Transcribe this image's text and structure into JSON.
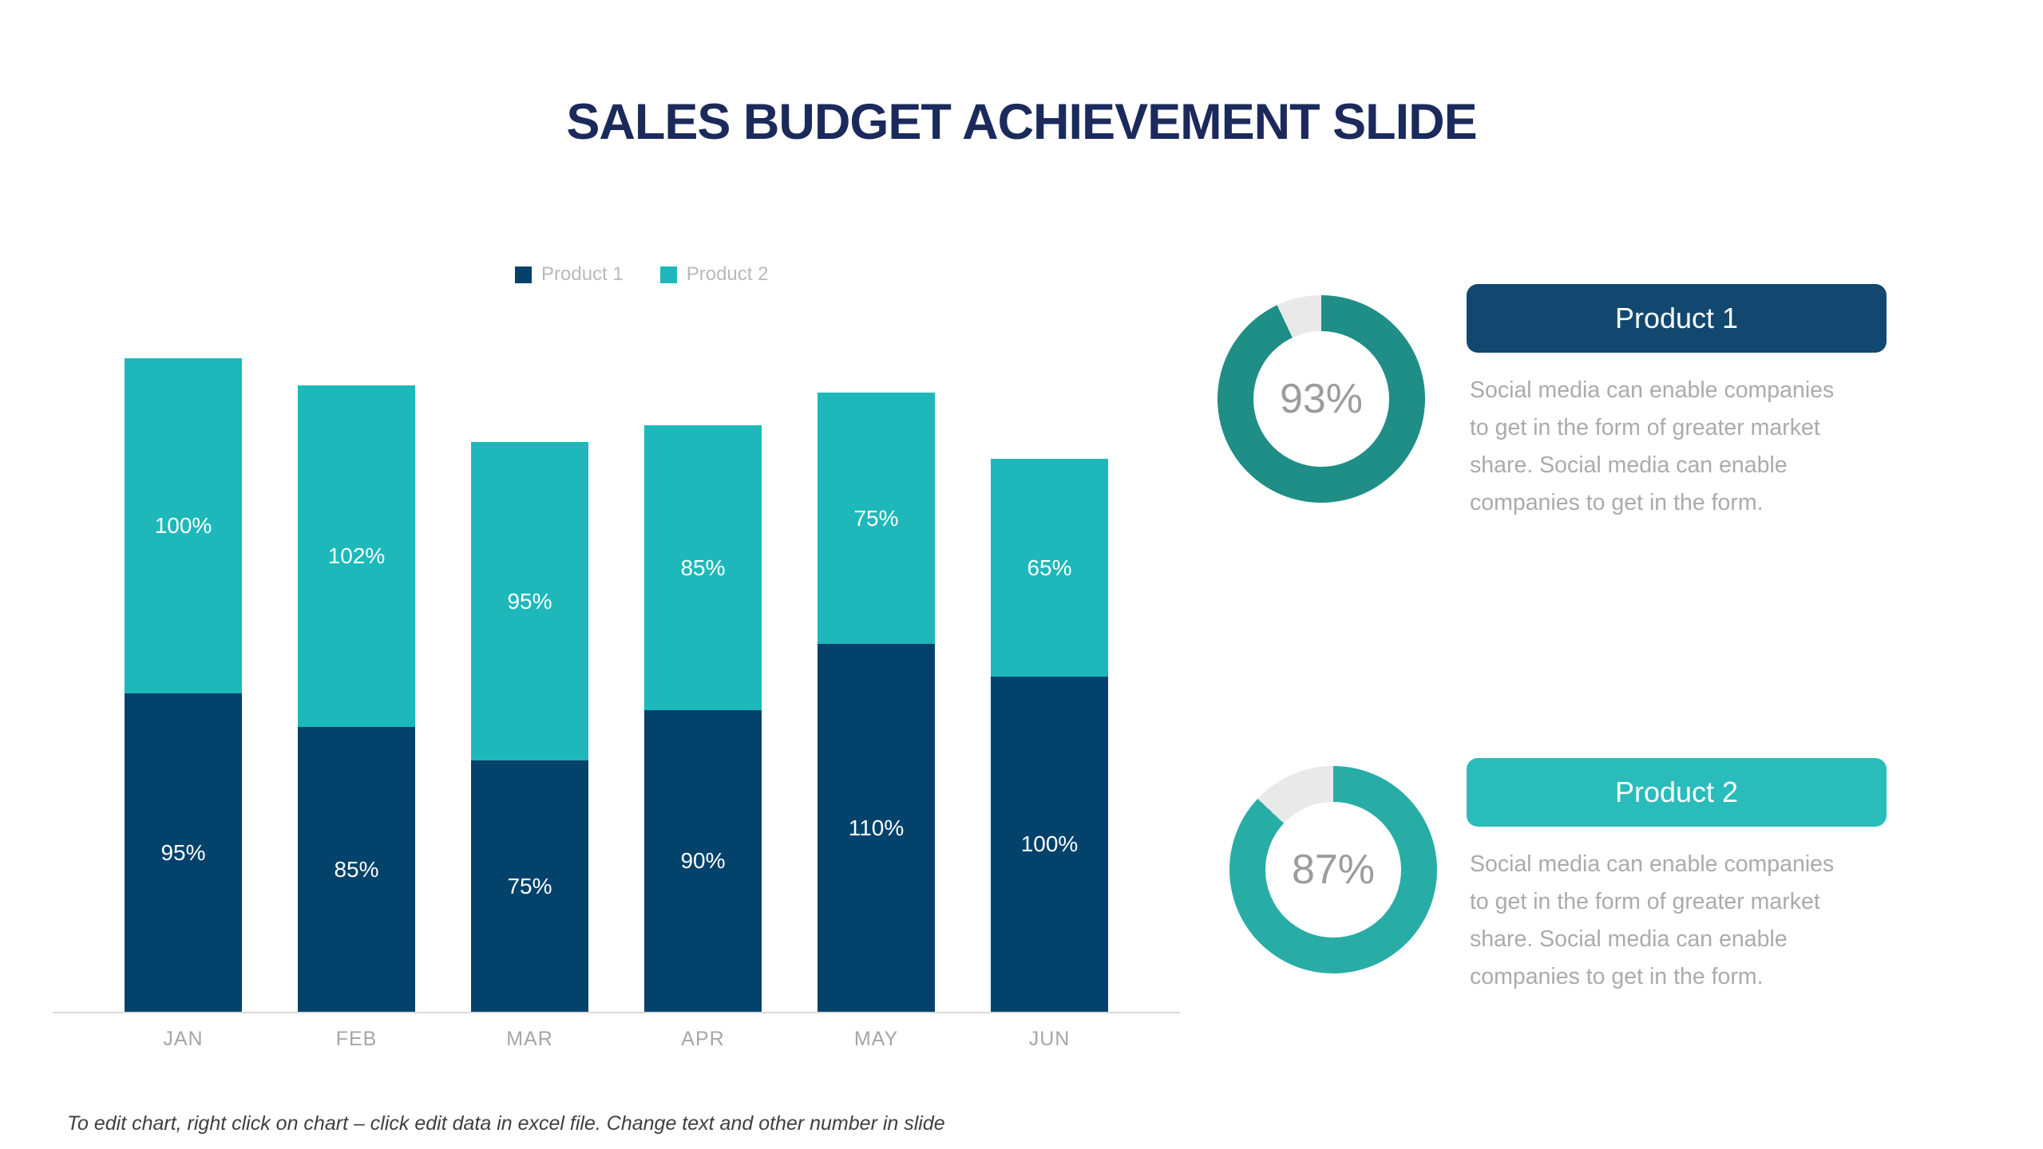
{
  "title": "SALES BUDGET ACHIEVEMENT SLIDE",
  "footer_note": "To edit chart, right click on chart – click edit data in excel file. Change text and other number in slide",
  "colors": {
    "title_navy": "#1B2A5B",
    "bar_navy": "#03426B",
    "bar_teal": "#1EB8BA",
    "donut1_teal": "#1F8E86",
    "donut2_teal": "#28ADA6",
    "track_gray": "#E9E9E9",
    "card1_navy": "#12486F",
    "card2_teal": "#29BCBA",
    "percent_gray": "#9C9C9C",
    "body_gray": "#ABABAB",
    "legend_gray": "#B9B9B9",
    "month_gray": "#A6A6A6",
    "axis_gray": "#D9D9D9",
    "footer_gray": "#3F3F3F"
  },
  "chart_data": [
    {
      "type": "bar",
      "stacked": true,
      "title": "",
      "categories": [
        "JAN",
        "FEB",
        "MAR",
        "APR",
        "MAY",
        "JUN"
      ],
      "series": [
        {
          "name": "Product 1",
          "color": "#03426B",
          "values": [
            95,
            85,
            75,
            90,
            110,
            100
          ],
          "labels": [
            "95%",
            "85%",
            "75%",
            "90%",
            "110%",
            "100%"
          ]
        },
        {
          "name": "Product 2",
          "color": "#1EB8BA",
          "values": [
            100,
            102,
            95,
            85,
            75,
            65
          ],
          "labels": [
            "100%",
            "102%",
            "95%",
            "85%",
            "75%",
            "65%"
          ]
        }
      ],
      "value_unit": "%",
      "ylim": [
        0,
        200
      ],
      "gridlines": false,
      "legend_position": "top",
      "xlabel": "",
      "ylabel": ""
    },
    {
      "type": "donut",
      "value": 93,
      "remainder": 7,
      "label": "93%",
      "color": "#1F8E86",
      "track_color": "#E9E9E9"
    },
    {
      "type": "donut",
      "value": 87,
      "remainder": 13,
      "label": "87%",
      "color": "#28ADA6",
      "track_color": "#E9E9E9"
    }
  ],
  "cards": [
    {
      "title": "Product 1",
      "header_color": "#12486F",
      "body_lines": [
        "Social media can enable companies",
        "to get in the form of greater market",
        "share. Social media can enable",
        "companies to get in the form."
      ]
    },
    {
      "title": "Product 2",
      "header_color": "#29BCBA",
      "body_lines": [
        "Social media can enable companies",
        "to get in the form of greater market",
        "share. Social media can enable",
        "companies to get in the form."
      ]
    }
  ]
}
